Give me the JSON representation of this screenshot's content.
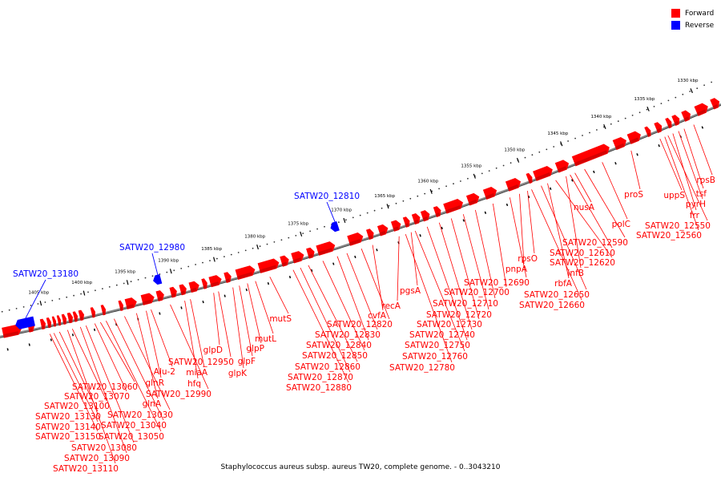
{
  "legend": {
    "items": [
      {
        "label": "Forward",
        "color": "#ff0000"
      },
      {
        "label": "Reverse",
        "color": "#0000ff"
      }
    ]
  },
  "caption": "Staphylococcus aureus subsp. aureus TW20, complete genome. - 0..3043210",
  "colors": {
    "forward": "#ff0000",
    "reverse": "#0000ff",
    "backbone": "#888888"
  },
  "ticks": [
    "1330 kbp",
    "1335 kbp",
    "1340 kbp",
    "1345 kbp",
    "1350 kbp",
    "1355 kbp",
    "1360 kbp",
    "1365 kbp",
    "1370 kbp",
    "1375 kbp",
    "1380 kbp",
    "1385 kbp",
    "1390 kbp",
    "1395 kbp",
    "1400 kbp",
    "1405 kbp"
  ],
  "reverse_genes": [
    "SATW20_12810",
    "SATW20_12980",
    "SATW20_13180"
  ],
  "forward_genes": [
    "rpsB",
    "tsf",
    "pyrH",
    "frr",
    "uppS",
    "SATW20_12550",
    "SATW20_12560",
    "proS",
    "polC",
    "nusA",
    "SATW20_12590",
    "SATW20_12610",
    "infB",
    "SATW20_12620",
    "rbfA",
    "rpsO",
    "SATW20_12650",
    "pnpA",
    "SATW20_12660",
    "SATW20_12690",
    "SATW20_12700",
    "SATW20_12710",
    "SATW20_12720",
    "pgsA",
    "SATW20_12730",
    "recA",
    "SATW20_12740",
    "SATW20_12750",
    "cvfA",
    "SATW20_12760",
    "SATW20_12780",
    "SATW20_12820",
    "SATW20_12830",
    "mutS",
    "SATW20_12840",
    "SATW20_12850",
    "SATW20_12860",
    "SATW20_12870",
    "mutL",
    "SATW20_12880",
    "glpP",
    "glpD",
    "glpF",
    "glpK",
    "SATW20_12950",
    "miaA",
    "hfq",
    "SATW20_12990",
    "Alu-2",
    "glnR",
    "glnA",
    "SATW20_13030",
    "SATW20_13040",
    "SATW20_13050",
    "SATW20_13060",
    "SATW20_13070",
    "SATW20_13080",
    "SATW20_13090",
    "SATW20_13100",
    "SATW20_13110",
    "SATW20_13130",
    "SATW20_13140",
    "SATW20_13150"
  ]
}
